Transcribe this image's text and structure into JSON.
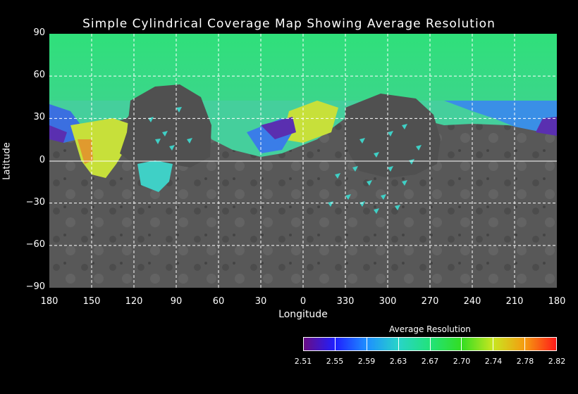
{
  "title": "Simple Cylindrical Coverage Map Showing Average Resolution",
  "axes": {
    "xlabel": "Longitude",
    "ylabel": "Latitude",
    "x_ticks": [
      "180",
      "150",
      "120",
      "90",
      "60",
      "30",
      "0",
      "330",
      "300",
      "270",
      "240",
      "210",
      "180"
    ],
    "y_ticks": [
      "90",
      "60",
      "30",
      "0",
      "−30",
      "−60",
      "−90"
    ],
    "grid": true
  },
  "colorbar": {
    "title": "Average Resolution",
    "ticks": [
      "2.51",
      "2.55",
      "2.59",
      "2.63",
      "2.67",
      "2.70",
      "2.74",
      "2.78",
      "2.82"
    ],
    "colors": [
      "#6a0d83",
      "#1f1fff",
      "#1e90ff",
      "#28d4c8",
      "#22e27a",
      "#33dd22",
      "#c8e620",
      "#f59b10",
      "#ff1a1a"
    ]
  },
  "map": {
    "basemap_color": "#5a5a5a",
    "coverage_colors": {
      "green": "#3bd97c",
      "cyan": "#3fd0c6",
      "blue": "#3a7de8",
      "purple": "#5a2fb0",
      "yellow": "#c7e03a",
      "orange": "#e09a2e"
    }
  }
}
